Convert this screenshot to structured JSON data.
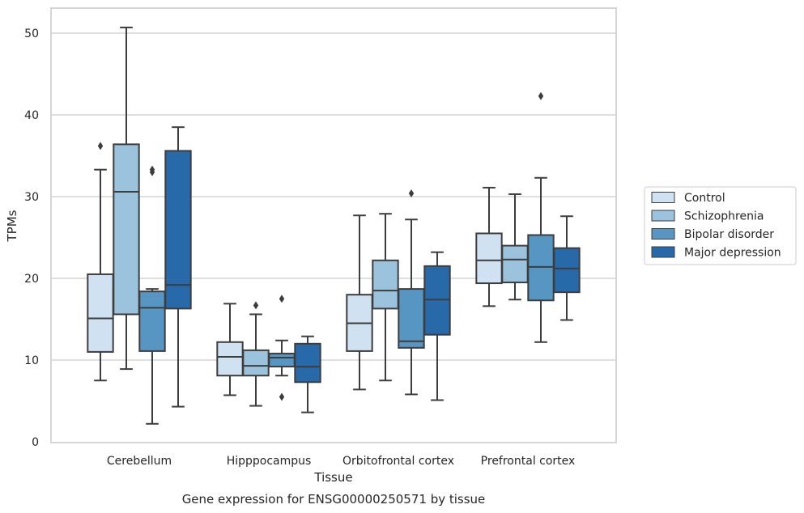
{
  "chart_data": {
    "type": "boxplot",
    "xlabel": "Tissue",
    "ylabel": "TPMs",
    "caption": "Gene expression for ENSG00000250571 by tissue",
    "ylim": [
      0,
      53
    ],
    "yticks": [
      0,
      10,
      20,
      30,
      40,
      50
    ],
    "grid": "horizontal",
    "legend_position": "right",
    "categories": [
      "Cerebellum",
      "Hipppocampus",
      "Orbitofrontal cortex",
      "Prefrontal cortex"
    ],
    "series": [
      {
        "name": "Control",
        "color": "#d0e1f2",
        "boxes": [
          {
            "whisker_low": 7.5,
            "q1": 11.0,
            "median": 15.1,
            "q3": 20.5,
            "whisker_high": 33.3,
            "outliers": [
              36.2
            ]
          },
          {
            "whisker_low": 5.7,
            "q1": 8.1,
            "median": 10.4,
            "q3": 12.2,
            "whisker_high": 16.9,
            "outliers": []
          },
          {
            "whisker_low": 6.4,
            "q1": 11.1,
            "median": 14.5,
            "q3": 18.0,
            "whisker_high": 27.7,
            "outliers": []
          },
          {
            "whisker_low": 16.6,
            "q1": 19.4,
            "median": 22.2,
            "q3": 25.5,
            "whisker_high": 31.1,
            "outliers": []
          }
        ]
      },
      {
        "name": "Schizophrenia",
        "color": "#9cc3de",
        "boxes": [
          {
            "whisker_low": 8.9,
            "q1": 15.6,
            "median": 30.6,
            "q3": 36.4,
            "whisker_high": 50.7,
            "outliers": []
          },
          {
            "whisker_low": 4.4,
            "q1": 8.1,
            "median": 9.3,
            "q3": 11.2,
            "whisker_high": 15.6,
            "outliers": [
              16.7
            ]
          },
          {
            "whisker_low": 7.5,
            "q1": 16.3,
            "median": 18.5,
            "q3": 22.2,
            "whisker_high": 27.9,
            "outliers": []
          },
          {
            "whisker_low": 17.4,
            "q1": 19.5,
            "median": 22.3,
            "q3": 24.0,
            "whisker_high": 30.3,
            "outliers": []
          }
        ]
      },
      {
        "name": "Bipolar disorder",
        "color": "#5795c3",
        "boxes": [
          {
            "whisker_low": 2.2,
            "q1": 11.1,
            "median": 16.4,
            "q3": 18.4,
            "whisker_high": 18.7,
            "outliers": [
              33.0,
              33.3
            ]
          },
          {
            "whisker_low": 8.1,
            "q1": 9.2,
            "median": 10.3,
            "q3": 10.8,
            "whisker_high": 12.4,
            "outliers": [
              17.5,
              5.5
            ]
          },
          {
            "whisker_low": 5.8,
            "q1": 11.5,
            "median": 12.3,
            "q3": 18.7,
            "whisker_high": 27.2,
            "outliers": [
              30.4
            ]
          },
          {
            "whisker_low": 12.2,
            "q1": 17.3,
            "median": 21.4,
            "q3": 25.3,
            "whisker_high": 32.3,
            "outliers": [
              42.3
            ]
          }
        ]
      },
      {
        "name": "Major depression",
        "color": "#2769a9",
        "boxes": [
          {
            "whisker_low": 4.3,
            "q1": 16.3,
            "median": 19.2,
            "q3": 35.6,
            "whisker_high": 38.5,
            "outliers": []
          },
          {
            "whisker_low": 3.6,
            "q1": 7.3,
            "median": 9.2,
            "q3": 12.0,
            "whisker_high": 12.9,
            "outliers": []
          },
          {
            "whisker_low": 5.1,
            "q1": 13.1,
            "median": 17.4,
            "q3": 21.5,
            "whisker_high": 23.2,
            "outliers": []
          },
          {
            "whisker_low": 14.9,
            "q1": 18.3,
            "median": 21.2,
            "q3": 23.7,
            "whisker_high": 27.6,
            "outliers": []
          }
        ]
      }
    ]
  }
}
